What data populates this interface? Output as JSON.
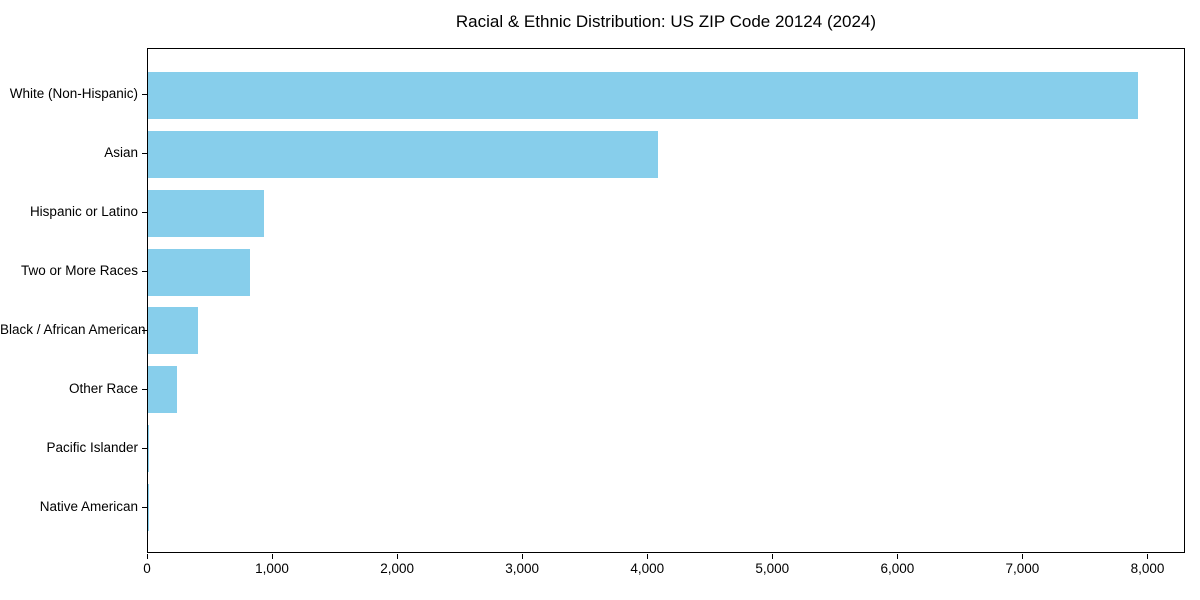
{
  "title": "Racial & Ethnic Distribution: US ZIP Code 20124 (2024)",
  "chart_data": {
    "type": "bar",
    "orientation": "horizontal",
    "title": "Racial & Ethnic Distribution: US ZIP Code 20124 (2024)",
    "xlabel": "",
    "ylabel": "",
    "categories": [
      "White (Non-Hispanic)",
      "Asian",
      "Hispanic or Latino",
      "Two or More Races",
      "Black / African American",
      "Other Race",
      "Pacific Islander",
      "Native American"
    ],
    "values": [
      7920,
      4075,
      925,
      815,
      400,
      230,
      8,
      2
    ],
    "xlim": [
      0,
      8300
    ],
    "xticks": [
      0,
      1000,
      2000,
      3000,
      4000,
      5000,
      6000,
      7000,
      8000
    ],
    "xtick_labels": [
      "0",
      "1,000",
      "2,000",
      "3,000",
      "4,000",
      "5,000",
      "6,000",
      "7,000",
      "8,000"
    ],
    "bar_color": "#87CEEB",
    "grid": false,
    "legend": null,
    "background_color": "#ffffff",
    "spine_color": "#000000"
  }
}
